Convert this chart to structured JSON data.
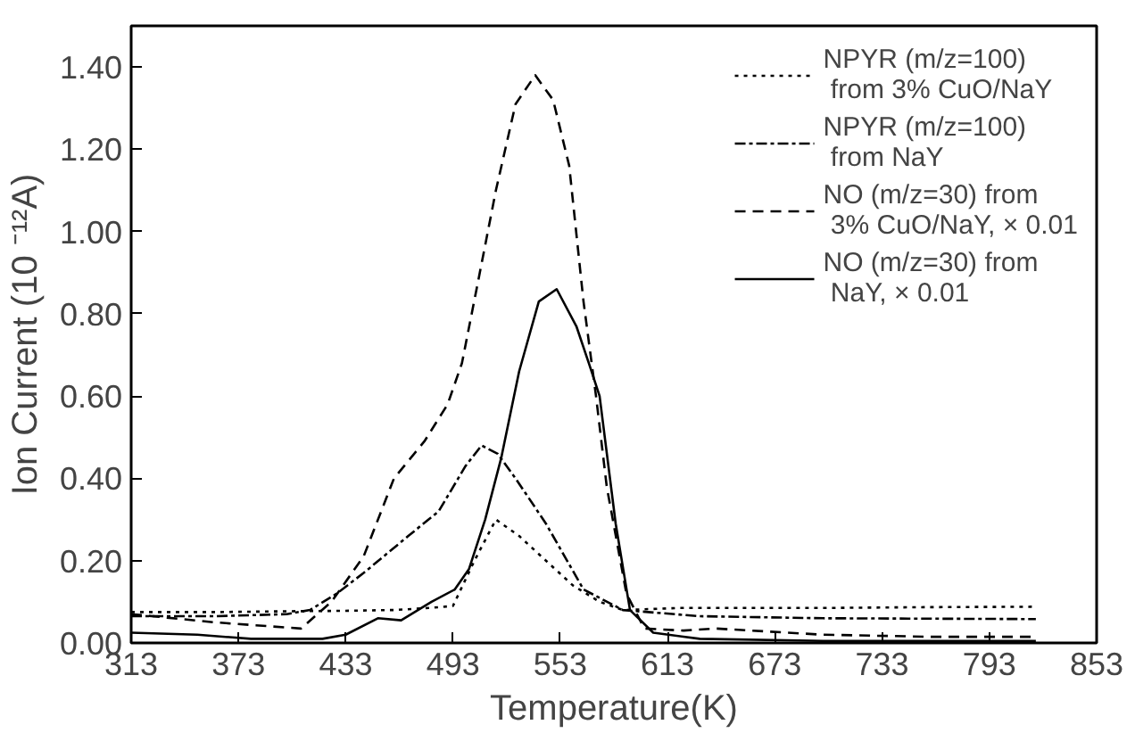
{
  "chart_data": {
    "type": "line",
    "xlabel": "Temperature(K)",
    "ylabel": "Ion Current (10 ⁻¹²A)",
    "xlim": [
      313,
      853
    ],
    "ylim": [
      0,
      1.5
    ],
    "xticks": [
      313,
      373,
      433,
      493,
      553,
      613,
      673,
      733,
      793,
      853
    ],
    "yticks": [
      {
        "value": 0,
        "label": "0.00"
      },
      {
        "value": 0.2,
        "label": "0.20"
      },
      {
        "value": 0.4,
        "label": "0.40"
      },
      {
        "value": 0.6,
        "label": "0.60"
      },
      {
        "value": 0.8,
        "label": "0.80"
      },
      {
        "value": 1.0,
        "label": "1.00"
      },
      {
        "value": 1.2,
        "label": "1.20"
      },
      {
        "value": 1.4,
        "label": "1.40"
      }
    ],
    "grid": false,
    "legend": "top right",
    "series": [
      {
        "name": "NPYR (m/z=100)\n from 3% CuO/NaY",
        "color": "#000000",
        "line_style": "dotted",
        "x": [
          313,
          360,
          400,
          430,
          460,
          480,
          493,
          505,
          517,
          530,
          545,
          560,
          575,
          588,
          620,
          700,
          760,
          819
        ],
        "values": [
          0.075,
          0.075,
          0.077,
          0.078,
          0.08,
          0.085,
          0.09,
          0.2,
          0.3,
          0.26,
          0.2,
          0.14,
          0.1,
          0.08,
          0.085,
          0.085,
          0.087,
          0.088
        ]
      },
      {
        "name": "NPYR (m/z=100)\n from NaY",
        "color": "#000000",
        "line_style": "dashdot",
        "x": [
          313,
          360,
          400,
          413,
          428,
          443,
          468,
          485,
          500,
          509,
          518,
          528,
          545,
          566,
          588,
          631,
          700,
          819
        ],
        "values": [
          0.065,
          0.065,
          0.07,
          0.08,
          0.12,
          0.17,
          0.26,
          0.32,
          0.43,
          0.48,
          0.46,
          0.4,
          0.29,
          0.13,
          0.08,
          0.065,
          0.06,
          0.058
        ]
      },
      {
        "name": "NO (m/z=30) from\n 3% CuO/NaY, × 0.01",
        "color": "#000000",
        "line_style": "dashed",
        "x": [
          313,
          360,
          408,
          425,
          443,
          460,
          477,
          490,
          498,
          508,
          517,
          528,
          539,
          549,
          558,
          566,
          573,
          579,
          590,
          600,
          622,
          640,
          700,
          760,
          819
        ],
        "values": [
          0.07,
          0.05,
          0.035,
          0.1,
          0.21,
          0.4,
          0.49,
          0.58,
          0.68,
          0.9,
          1.1,
          1.31,
          1.38,
          1.32,
          1.16,
          0.83,
          0.6,
          0.38,
          0.12,
          0.035,
          0.03,
          0.035,
          0.02,
          0.015,
          0.015
        ]
      },
      {
        "name": "NO (m/z=30) from\n NaY, × 0.01",
        "color": "#000000",
        "line_style": "solid",
        "x": [
          313,
          350,
          380,
          420,
          433,
          451,
          464,
          481,
          494,
          502,
          511,
          520,
          530,
          541,
          551,
          562,
          569,
          575,
          584,
          592,
          605,
          631,
          700,
          819
        ],
        "values": [
          0.025,
          0.02,
          0.01,
          0.01,
          0.02,
          0.06,
          0.055,
          0.1,
          0.13,
          0.18,
          0.3,
          0.45,
          0.66,
          0.83,
          0.86,
          0.77,
          0.68,
          0.6,
          0.29,
          0.08,
          0.025,
          0.01,
          0.005,
          0.005
        ]
      }
    ]
  }
}
